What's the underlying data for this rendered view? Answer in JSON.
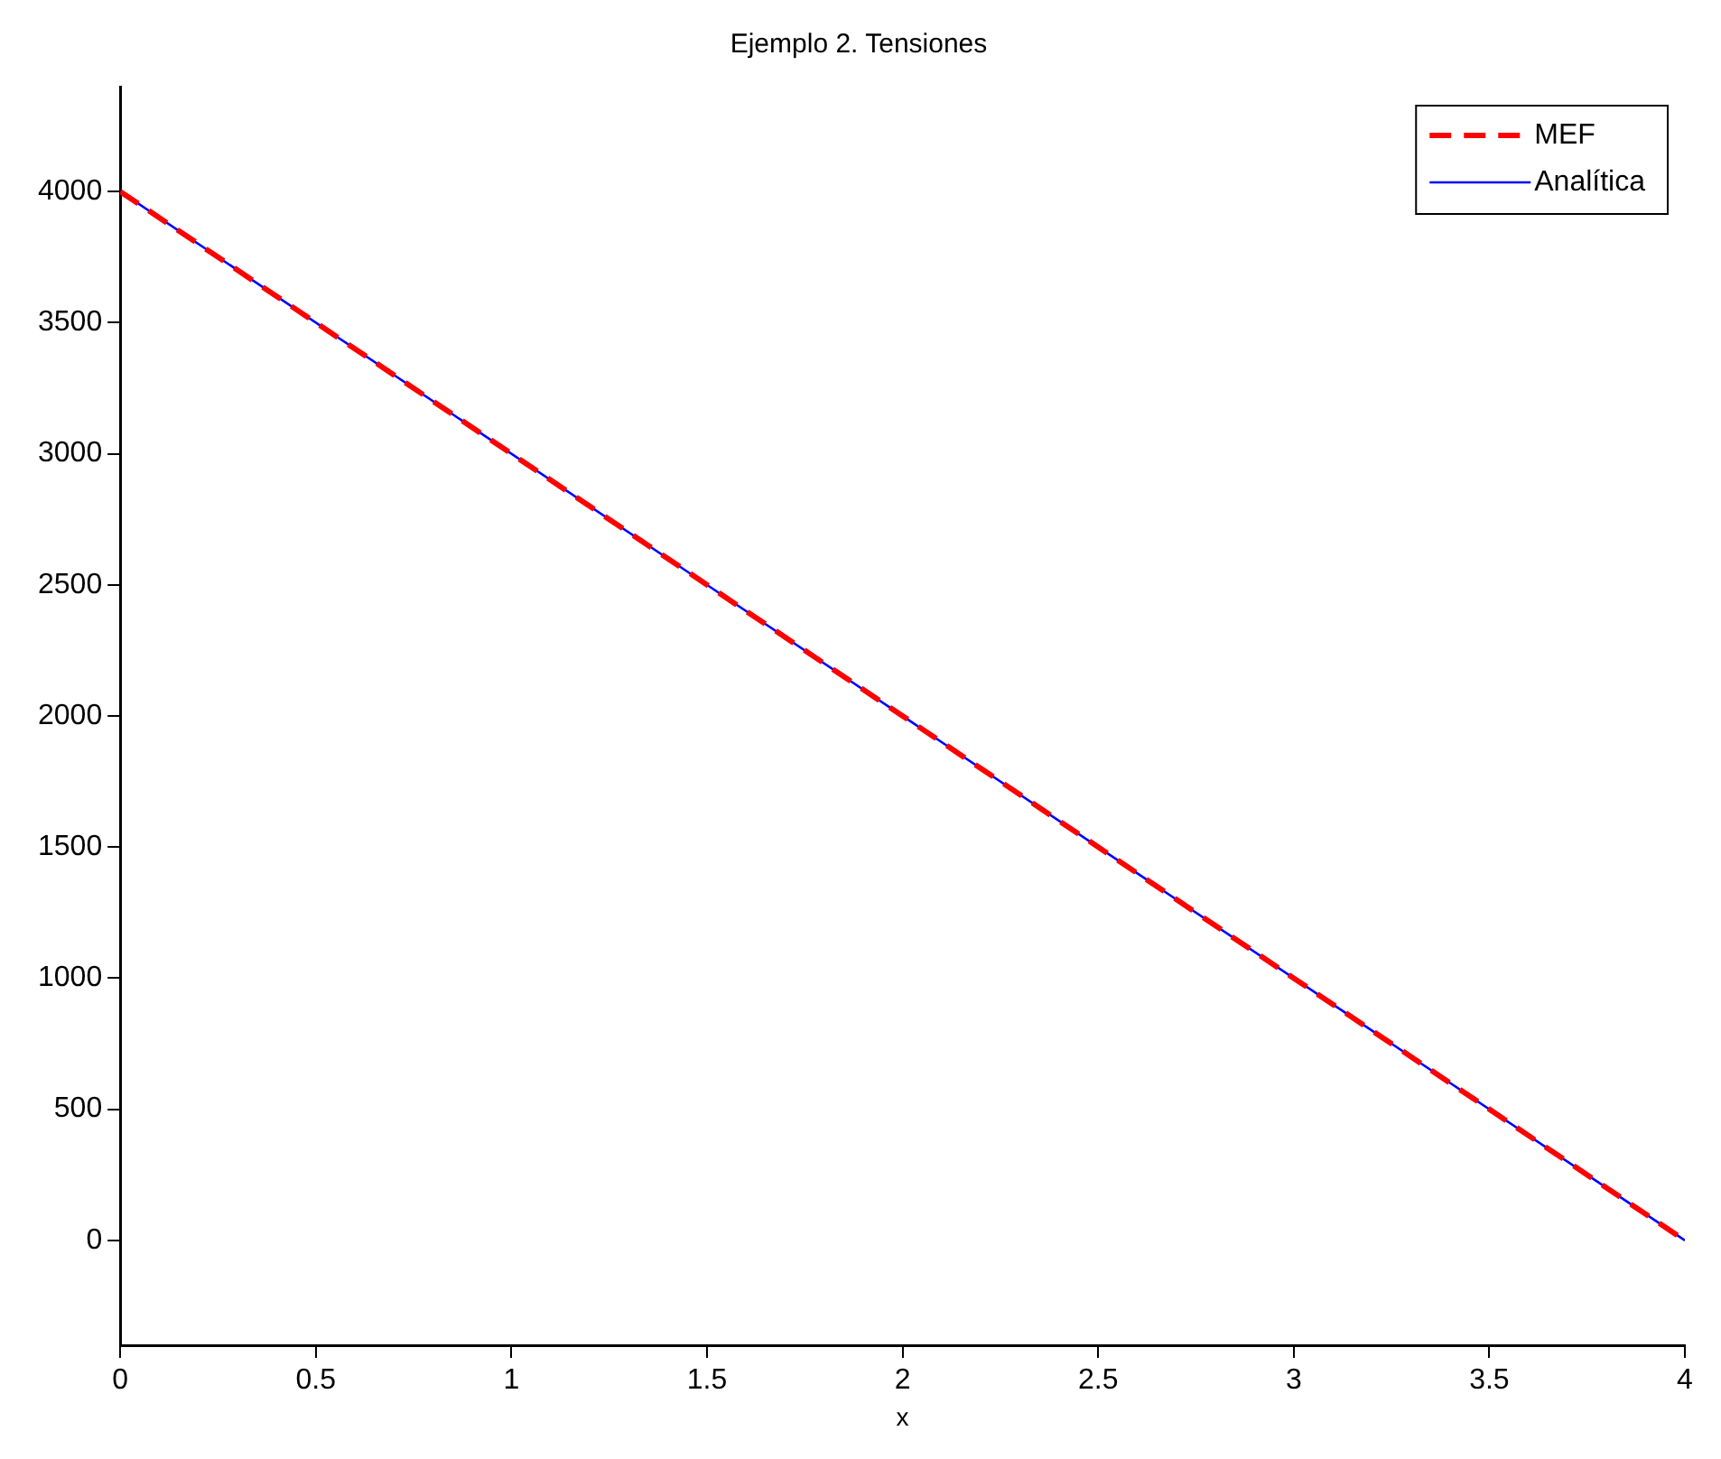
{
  "chart_data": {
    "type": "line",
    "title": "Ejemplo 2. Tensiones",
    "xlabel": "x",
    "series": [
      {
        "name": "MEF",
        "color": "#ff0000",
        "line_style": "dashed",
        "x": [
          0,
          1,
          2,
          3,
          4
        ],
        "values": [
          4000,
          3000,
          2000,
          1000,
          0
        ]
      },
      {
        "name": "Analítica",
        "color": "#0000ff",
        "line_style": "solid",
        "x": [
          0,
          4
        ],
        "values": [
          4000,
          0
        ]
      }
    ],
    "xlim": [
      0,
      4
    ],
    "xticks": [
      0,
      0.5,
      1,
      1.5,
      2,
      2.5,
      3,
      3.5,
      4
    ],
    "ylim": [
      -400,
      4400
    ],
    "yticks": [
      0,
      500,
      1000,
      1500,
      2000,
      2500,
      3000,
      3500,
      4000
    ],
    "grid": false,
    "legend": "top right",
    "marker": "none"
  }
}
